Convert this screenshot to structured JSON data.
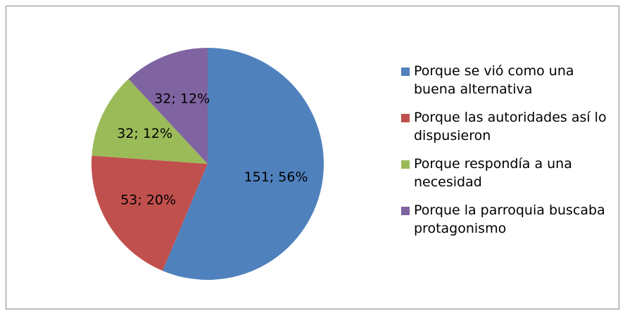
{
  "chart_data": {
    "type": "pie",
    "categories": [
      "Porque se vió como una buena alternativa",
      "Porque las autoridades así lo dispusieron",
      "Porque respondía a una necesidad",
      "Porque la parroquia buscaba protagonismo"
    ],
    "values": [
      151,
      53,
      32,
      32
    ],
    "value_labels": [
      "151; 56%",
      "53; 20%",
      "32; 12%",
      "32; 12%"
    ],
    "colors": [
      "#4f81bd",
      "#c0504d",
      "#9bbb59",
      "#8064a2"
    ],
    "legend": "right"
  }
}
